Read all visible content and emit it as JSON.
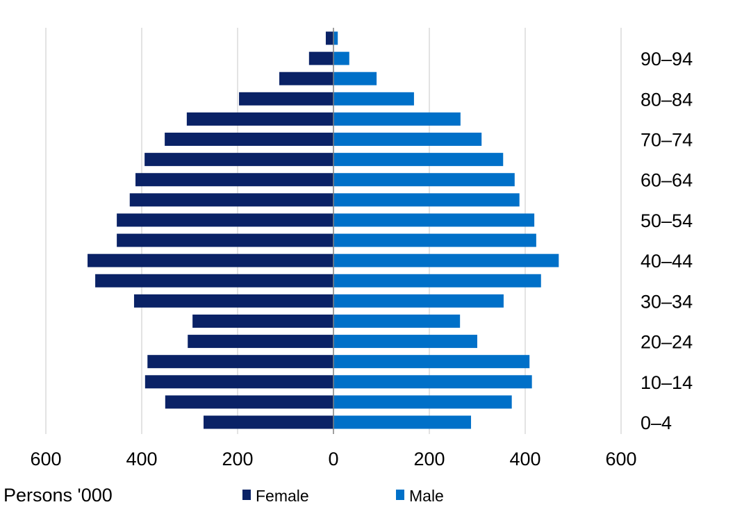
{
  "chart_data": {
    "type": "bar",
    "orientation": "horizontal",
    "subtype": "population-pyramid",
    "title": "",
    "xlabel": "Persons '000",
    "ylabel": "",
    "xlim": [
      -600,
      600
    ],
    "x_tick_values": [
      -600,
      -400,
      -200,
      0,
      200,
      400,
      600
    ],
    "x_tick_labels": [
      "600",
      "400",
      "200",
      "0",
      "200",
      "400",
      "600"
    ],
    "grid": "vertical",
    "legend_position": "bottom",
    "categories": [
      "0–4",
      "",
      "10–14",
      "",
      "20–24",
      "",
      "30–34",
      "",
      "40–44",
      "",
      "50–54",
      "",
      "60–64",
      "",
      "70–74",
      "",
      "80–84",
      "",
      "90–94",
      ""
    ],
    "series": [
      {
        "name": "Female",
        "color": "#0a2266",
        "side": "left",
        "values": [
          271,
          351,
          393,
          388,
          304,
          294,
          416,
          497,
          513,
          452,
          452,
          425,
          413,
          394,
          352,
          306,
          197,
          113,
          51,
          16
        ]
      },
      {
        "name": "Male",
        "color": "#0070c8",
        "side": "right",
        "values": [
          287,
          372,
          414,
          409,
          300,
          264,
          355,
          433,
          470,
          423,
          419,
          388,
          378,
          354,
          309,
          265,
          168,
          90,
          33,
          9
        ]
      }
    ]
  }
}
